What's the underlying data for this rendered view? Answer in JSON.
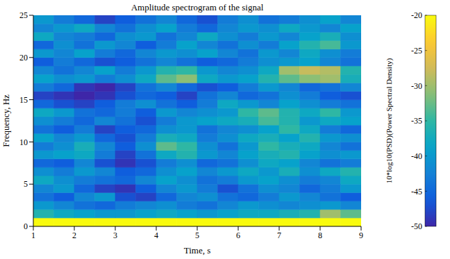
{
  "chart_data": {
    "type": "heatmap",
    "title": "Amplitude spectrogram of the signal",
    "xlabel": "Time, s",
    "ylabel": "Frequency, Hz",
    "xlim": [
      1,
      9
    ],
    "xticks": [
      1,
      2,
      3,
      4,
      5,
      6,
      7,
      8,
      9
    ],
    "ylim": [
      0,
      25
    ],
    "yticks": [
      0,
      5,
      10,
      15,
      20,
      25
    ],
    "x_bins": [
      1,
      1.5,
      2,
      2.5,
      3,
      3.5,
      4,
      4.5,
      5,
      5.5,
      6,
      6.5,
      7,
      7.5,
      8,
      8.5,
      9
    ],
    "y_bins": [
      0,
      1,
      2,
      3,
      4,
      5,
      6,
      7,
      8,
      9,
      10,
      11,
      12,
      13,
      14,
      15,
      16,
      17,
      18,
      19,
      20,
      21,
      22,
      23,
      24,
      25
    ],
    "cells": [
      [
        -20,
        -20,
        -20,
        -20,
        -20,
        -20,
        -20,
        -20,
        -20,
        -20,
        -20,
        -20,
        -20,
        -20,
        -20,
        -20
      ],
      [
        -36,
        -38,
        -39,
        -40,
        -40,
        -39,
        -38,
        -39,
        -40,
        -39,
        -38,
        -38,
        -37,
        -36,
        -30,
        -33
      ],
      [
        -40,
        -42,
        -44,
        -45,
        -43,
        -42,
        -41,
        -43,
        -44,
        -42,
        -40,
        -41,
        -42,
        -41,
        -40,
        -42
      ],
      [
        -44,
        -46,
        -42,
        -40,
        -47,
        -48,
        -45,
        -42,
        -41,
        -44,
        -45,
        -43,
        -40,
        -42,
        -44,
        -46
      ],
      [
        -42,
        -40,
        -45,
        -48,
        -49,
        -46,
        -42,
        -40,
        -43,
        -47,
        -44,
        -41,
        -42,
        -45,
        -43,
        -40
      ],
      [
        -38,
        -41,
        -43,
        -44,
        -45,
        -42,
        -39,
        -41,
        -44,
        -43,
        -40,
        -39,
        -41,
        -43,
        -42,
        -38
      ],
      [
        -41,
        -43,
        -40,
        -42,
        -46,
        -45,
        -41,
        -39,
        -42,
        -40,
        -38,
        -40,
        -37,
        -41,
        -38,
        -36
      ],
      [
        -45,
        -46,
        -42,
        -47,
        -49,
        -47,
        -43,
        -41,
        -45,
        -44,
        -41,
        -38,
        -39,
        -42,
        -44,
        -43
      ],
      [
        -40,
        -39,
        -38,
        -43,
        -48,
        -44,
        -38,
        -36,
        -40,
        -42,
        -39,
        -37,
        -36,
        -39,
        -41,
        -40
      ],
      [
        -43,
        -41,
        -37,
        -42,
        -46,
        -41,
        -33,
        -35,
        -41,
        -44,
        -40,
        -35,
        -37,
        -38,
        -42,
        -44
      ],
      [
        -39,
        -42,
        -40,
        -45,
        -47,
        -43,
        -37,
        -38,
        -43,
        -41,
        -38,
        -37,
        -39,
        -36,
        -40,
        -41
      ],
      [
        -44,
        -46,
        -43,
        -48,
        -46,
        -45,
        -41,
        -40,
        -44,
        -42,
        -41,
        -39,
        -35,
        -38,
        -43,
        -45
      ],
      [
        -41,
        -43,
        -45,
        -42,
        -44,
        -47,
        -43,
        -40,
        -39,
        -38,
        -37,
        -34,
        -36,
        -40,
        -38,
        -39
      ],
      [
        -38,
        -40,
        -44,
        -45,
        -43,
        -46,
        -40,
        -42,
        -41,
        -40,
        -35,
        -33,
        -36,
        -38,
        -35,
        -40
      ],
      [
        -45,
        -47,
        -48,
        -46,
        -43,
        -41,
        -44,
        -46,
        -43,
        -38,
        -40,
        -42,
        -39,
        -41,
        -43,
        -44
      ],
      [
        -48,
        -49,
        -50,
        -49,
        -47,
        -45,
        -46,
        -48,
        -44,
        -42,
        -45,
        -44,
        -41,
        -43,
        -46,
        -47
      ],
      [
        -43,
        -45,
        -49,
        -50,
        -48,
        -44,
        -42,
        -45,
        -47,
        -46,
        -43,
        -40,
        -42,
        -45,
        -44,
        -42
      ],
      [
        -39,
        -41,
        -40,
        -43,
        -41,
        -38,
        -33,
        -31,
        -38,
        -40,
        -39,
        -36,
        -33,
        -31,
        -30,
        -37
      ],
      [
        -42,
        -44,
        -42,
        -39,
        -43,
        -40,
        -36,
        -35,
        -40,
        -42,
        -41,
        -38,
        -30,
        -28,
        -29,
        -36
      ],
      [
        -46,
        -43,
        -45,
        -47,
        -46,
        -44,
        -42,
        -44,
        -46,
        -45,
        -43,
        -41,
        -40,
        -39,
        -42,
        -44
      ],
      [
        -40,
        -42,
        -39,
        -43,
        -45,
        -42,
        -40,
        -41,
        -39,
        -42,
        -44,
        -40,
        -42,
        -38,
        -41,
        -43
      ],
      [
        -45,
        -41,
        -44,
        -40,
        -42,
        -46,
        -43,
        -39,
        -42,
        -44,
        -41,
        -43,
        -39,
        -36,
        -34,
        -40
      ],
      [
        -38,
        -42,
        -43,
        -45,
        -41,
        -40,
        -44,
        -42,
        -38,
        -41,
        -43,
        -40,
        -42,
        -39,
        -37,
        -41
      ],
      [
        -42,
        -40,
        -38,
        -42,
        -44,
        -41,
        -39,
        -43,
        -45,
        -42,
        -40,
        -41,
        -38,
        -40,
        -42,
        -39
      ],
      [
        -40,
        -43,
        -45,
        -48,
        -46,
        -44,
        -42,
        -45,
        -47,
        -43,
        -41,
        -44,
        -43,
        -41,
        -39,
        -42
      ]
    ],
    "colorbar": {
      "label": "10*log10(PSD)(Power Spectral Density)",
      "lim": [
        -50,
        -20
      ],
      "ticks": [
        -20,
        -25,
        -30,
        -35,
        -40,
        -45,
        -50
      ]
    }
  }
}
